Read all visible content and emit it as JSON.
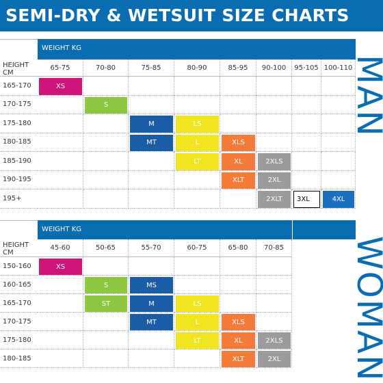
{
  "header": {
    "title": "SEMI-DRY & WETSUIT SIZE CHARTS"
  },
  "tables": [
    {
      "label": "MAN",
      "weight_label": "WEIGHT KG",
      "height_label": "HEIGHT CM",
      "columns": [
        "65-75",
        "70-80",
        "75-85",
        "80-90",
        "85-95",
        "90-100",
        "95-105",
        "100-110"
      ],
      "rows": [
        {
          "height": "165-170",
          "cells": [
            {
              "label": "XS",
              "color": "#d0157a"
            },
            null,
            null,
            null,
            null,
            null,
            null,
            null
          ]
        },
        {
          "height": "170-175",
          "cells": [
            null,
            {
              "label": "S",
              "color": "#8dc63f"
            },
            null,
            null,
            null,
            null,
            null,
            null
          ]
        },
        {
          "height": "175-180",
          "cells": [
            null,
            null,
            {
              "label": "M",
              "color": "#1b5ca6"
            },
            {
              "label": "LS",
              "color": "#f0e51f"
            },
            null,
            null,
            null,
            null
          ]
        },
        {
          "height": "180-185",
          "cells": [
            null,
            null,
            {
              "label": "MT",
              "color": "#1b5ca6"
            },
            {
              "label": "L",
              "color": "#f0e51f"
            },
            {
              "label": "XLS",
              "color": "#f47b3a"
            },
            null,
            null,
            null
          ]
        },
        {
          "height": "185-190",
          "cells": [
            null,
            null,
            null,
            {
              "label": "LT",
              "color": "#f0e51f"
            },
            {
              "label": "XL",
              "color": "#f47b3a"
            },
            {
              "label": "2XLS",
              "color": "#9b9b9b"
            },
            null,
            null
          ]
        },
        {
          "height": "190-195",
          "cells": [
            null,
            null,
            null,
            null,
            {
              "label": "XLT",
              "color": "#f47b3a"
            },
            {
              "label": "2XL",
              "color": "#9b9b9b"
            },
            null,
            null
          ]
        },
        {
          "height": "195+",
          "cells": [
            null,
            null,
            null,
            null,
            null,
            {
              "label": "2XLT",
              "color": "#9b9b9b"
            },
            {
              "label": "3XL",
              "color": "#ffffff"
            },
            {
              "label": "4XL",
              "color": "#1a6fc0"
            }
          ]
        }
      ]
    },
    {
      "label": "WOMAN",
      "weight_label": "WEIGHT KG",
      "height_label": "HEIGHT CM",
      "columns": [
        "45-60",
        "50-65",
        "55-70",
        "60-75",
        "65-80",
        "70-85"
      ],
      "rows": [
        {
          "height": "150-160",
          "cells": [
            {
              "label": "XS",
              "color": "#d0157a"
            },
            null,
            null,
            null,
            null,
            null
          ]
        },
        {
          "height": "160-165",
          "cells": [
            null,
            {
              "label": "S",
              "color": "#8dc63f"
            },
            {
              "label": "MS",
              "color": "#1b5ca6"
            },
            null,
            null,
            null
          ]
        },
        {
          "height": "165-170",
          "cells": [
            null,
            {
              "label": "ST",
              "color": "#8dc63f"
            },
            {
              "label": "M",
              "color": "#1b5ca6"
            },
            {
              "label": "LS",
              "color": "#f0e51f"
            },
            null,
            null
          ]
        },
        {
          "height": "170-175",
          "cells": [
            null,
            null,
            {
              "label": "MT",
              "color": "#1b5ca6"
            },
            {
              "label": "L",
              "color": "#f0e51f"
            },
            {
              "label": "XLS",
              "color": "#f47b3a"
            },
            null
          ]
        },
        {
          "height": "175-180",
          "cells": [
            null,
            null,
            null,
            {
              "label": "LT",
              "color": "#f0e51f"
            },
            {
              "label": "XL",
              "color": "#f47b3a"
            },
            {
              "label": "2XLS",
              "color": "#9b9b9b"
            }
          ]
        },
        {
          "height": "180-185",
          "cells": [
            null,
            null,
            null,
            null,
            {
              "label": "XLT",
              "color": "#f47b3a"
            },
            {
              "label": "2XL",
              "color": "#9b9b9b"
            }
          ]
        }
      ]
    }
  ]
}
